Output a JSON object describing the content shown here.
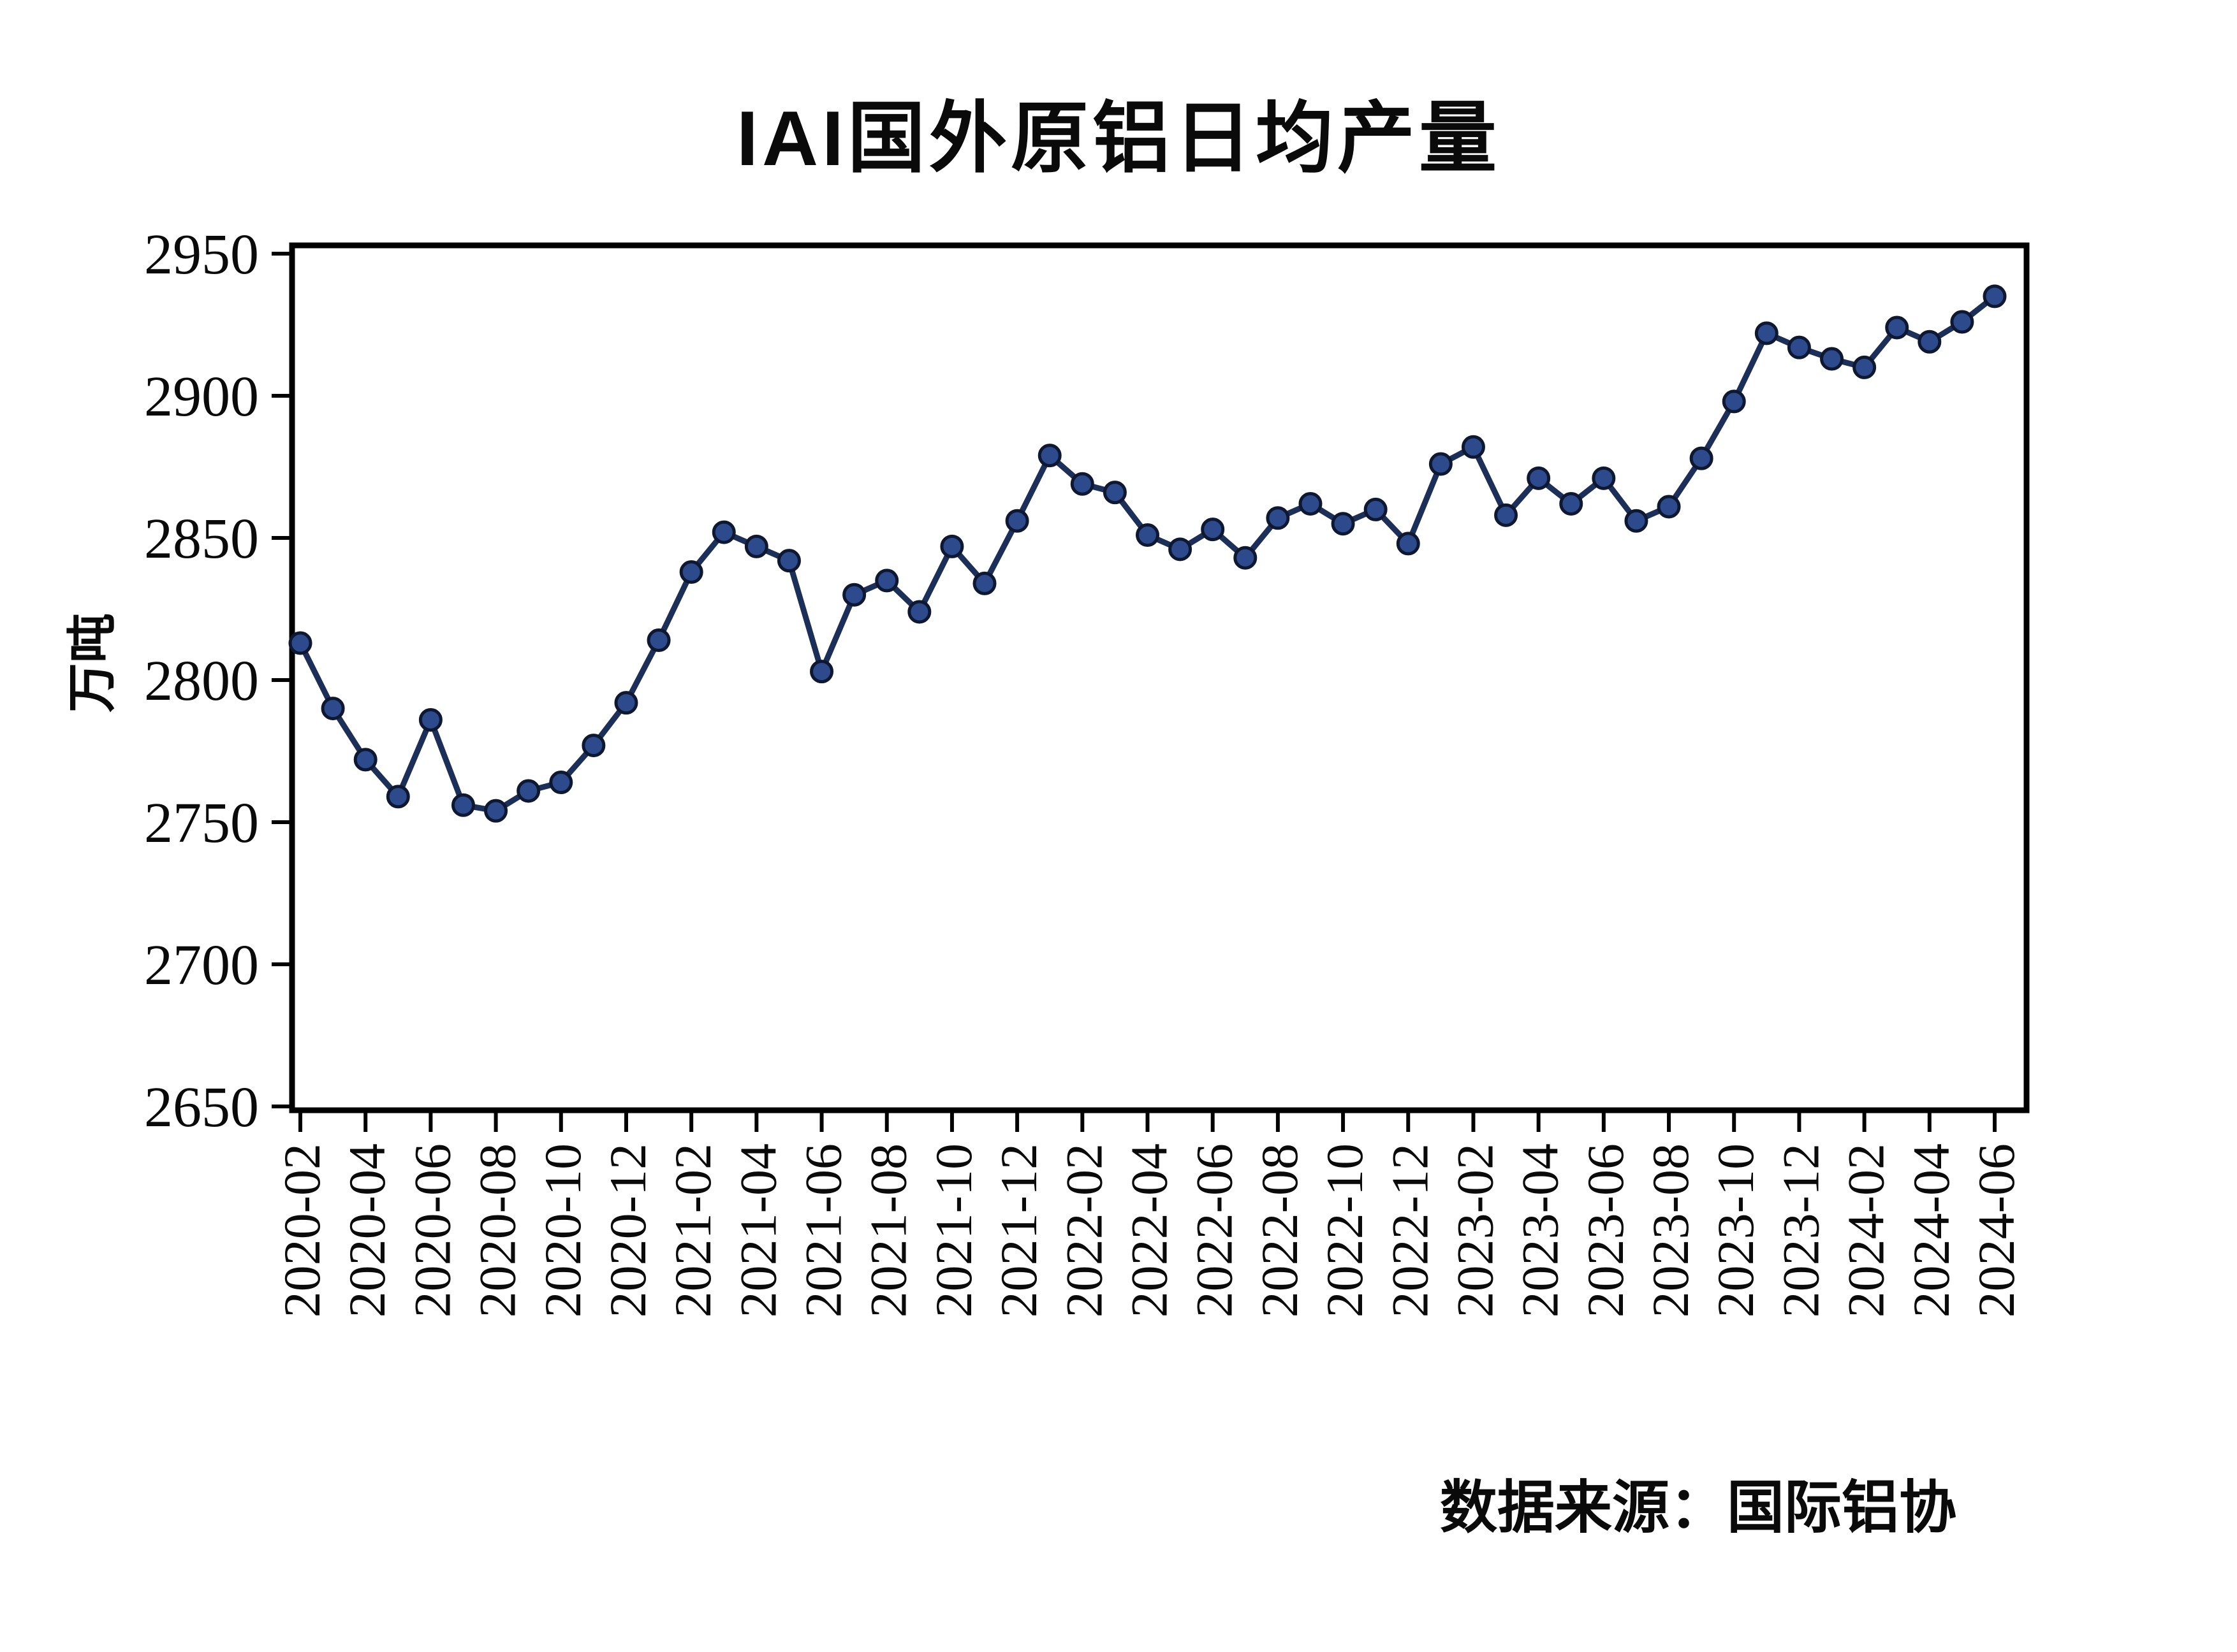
{
  "title": "IAI国外原铝日均产量",
  "source_label": "数据来源：国际铝协",
  "colors": {
    "line": "#1c2f58",
    "marker_fill": "#2c4a8c",
    "marker_edge": "#0e1830",
    "axis": "#000000",
    "text": "#0a0a0a"
  },
  "chart_data": {
    "type": "line",
    "title": "IAI国外原铝日均产量",
    "ylabel": "万吨",
    "xlabel": "",
    "source_label": "数据来源：国际铝协",
    "grid": false,
    "legend": "none",
    "ylim": [
      2650,
      2950
    ],
    "yticks": [
      2950,
      2900,
      2850,
      2800,
      2750,
      2700,
      2650
    ],
    "xtick_labels": [
      "2020-02",
      "2020-04",
      "2020-06",
      "2020-08",
      "2020-10",
      "2020-12",
      "2021-02",
      "2021-04",
      "2021-06",
      "2021-08",
      "2021-10",
      "2021-12",
      "2022-02",
      "2022-04",
      "2022-06",
      "2022-08",
      "2022-10",
      "2022-12",
      "2023-02",
      "2023-04",
      "2023-06",
      "2023-08",
      "2023-10",
      "2023-12",
      "2024-02",
      "2024-04",
      "2024-06"
    ],
    "x": [
      "2020-02",
      "2020-03",
      "2020-04",
      "2020-05",
      "2020-06",
      "2020-07",
      "2020-08",
      "2020-09",
      "2020-10",
      "2020-11",
      "2020-12",
      "2021-01",
      "2021-02",
      "2021-03",
      "2021-04",
      "2021-05",
      "2021-06",
      "2021-07",
      "2021-08",
      "2021-09",
      "2021-10",
      "2021-11",
      "2021-12",
      "2022-01",
      "2022-02",
      "2022-03",
      "2022-04",
      "2022-05",
      "2022-06",
      "2022-07",
      "2022-08",
      "2022-09",
      "2022-10",
      "2022-11",
      "2022-12",
      "2023-01",
      "2023-02",
      "2023-03",
      "2023-04",
      "2023-05",
      "2023-06",
      "2023-07",
      "2023-08",
      "2023-09",
      "2023-10",
      "2023-11",
      "2023-12",
      "2024-01",
      "2024-02",
      "2024-03",
      "2024-04",
      "2024-05",
      "2024-06"
    ],
    "values": [
      2813,
      2790,
      2772,
      2759,
      2786,
      2756,
      2754,
      2761,
      2764,
      2777,
      2792,
      2814,
      2838,
      2852,
      2847,
      2842,
      2803,
      2830,
      2835,
      2824,
      2847,
      2834,
      2856,
      2879,
      2869,
      2866,
      2851,
      2846,
      2853,
      2843,
      2857,
      2862,
      2855,
      2860,
      2848,
      2876,
      2882,
      2858,
      2871,
      2862,
      2871,
      2856,
      2861,
      2878,
      2898,
      2922,
      2917,
      2913,
      2910,
      2924,
      2919,
      2926,
      2935
    ]
  }
}
